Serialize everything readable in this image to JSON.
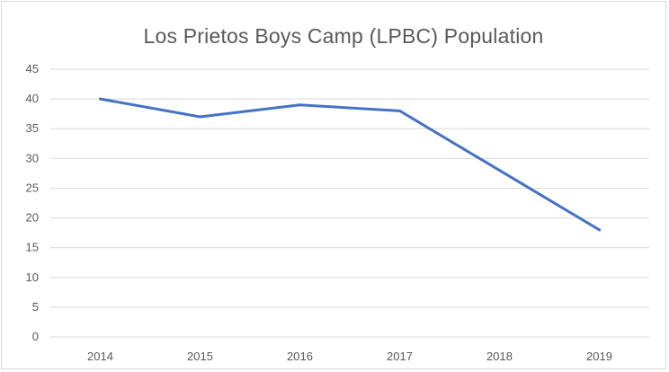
{
  "chart_data": {
    "type": "line",
    "title": "Los Prietos Boys Camp (LPBC) Population",
    "categories": [
      "2014",
      "2015",
      "2016",
      "2017",
      "2018",
      "2019"
    ],
    "series": [
      {
        "values": [
          40,
          37,
          39,
          38,
          28,
          18
        ]
      }
    ],
    "y_ticks": [
      "0",
      "5",
      "10",
      "15",
      "20",
      "25",
      "30",
      "35",
      "40",
      "45"
    ],
    "ylim": [
      0,
      45
    ],
    "grid": true,
    "legend": "none",
    "colors": {
      "line": "#4472c4",
      "grid": "#d9d9d9",
      "text": "#595959"
    }
  }
}
